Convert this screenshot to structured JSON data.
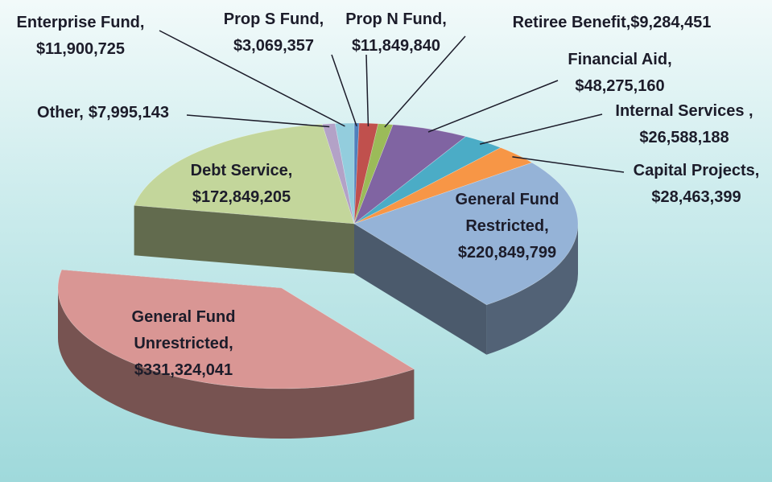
{
  "chart_data": {
    "type": "pie",
    "categories": [
      "Prop S Fund,",
      "Prop N Fund,",
      "Retiree Benefit,",
      "Financial Aid,",
      "Internal Services ,",
      "Capital Projects,",
      "General Fund Restricted,",
      "General Fund Unrestricted,",
      "Debt Service,",
      "Other,",
      "Enterprise Fund,"
    ],
    "values": [
      3069357,
      11849840,
      9284451,
      48275160,
      26588188,
      28463399,
      220849799,
      331324041,
      172849205,
      7995143,
      11900725
    ],
    "value_labels": [
      "$3,069,357",
      "$11,849,840",
      "$9,284,451",
      "$48,275,160",
      "$26,588,188",
      "$28,463,399",
      "$220,849,799",
      "$331,324,041",
      "$172,849,205",
      "$7,995,143",
      "$11,900,725"
    ],
    "colors": [
      "#4f81bd",
      "#c0504d",
      "#9bbb59",
      "#8064a2",
      "#4bacc6",
      "#f79646",
      "#95b3d7",
      "#d99694",
      "#c3d69b",
      "#b3a2c7",
      "#93cddd"
    ],
    "exploded": [
      7
    ],
    "three_d": true
  }
}
